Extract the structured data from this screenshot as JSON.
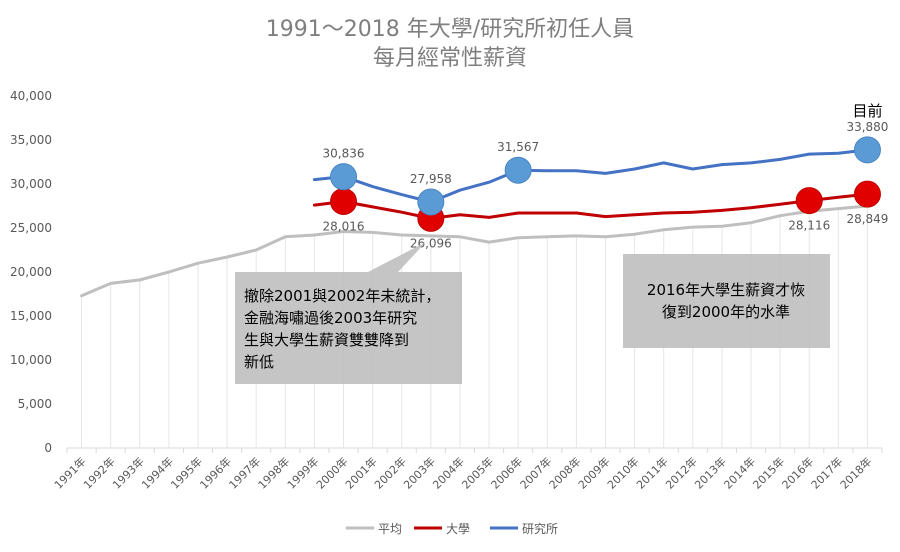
{
  "chart_data": {
    "type": "line",
    "title_lines": [
      "1991～2018 年大學/研究所初任人員",
      "每月經常性薪資"
    ],
    "categories": [
      "1991年",
      "1992年",
      "1993年",
      "1994年",
      "1995年",
      "1996年",
      "1997年",
      "1998年",
      "1999年",
      "2000年",
      "2001年",
      "2002年",
      "2003年",
      "2004年",
      "2005年",
      "2006年",
      "2007年",
      "2008年",
      "2009年",
      "2010年",
      "2011年",
      "2012年",
      "2013年",
      "2014年",
      "2015年",
      "2016年",
      "2017年",
      "2018年"
    ],
    "ylim": [
      0,
      40000
    ],
    "yticks": [
      "0",
      "5,000",
      "10,000",
      "15,000",
      "20,000",
      "25,000",
      "30,000",
      "35,000",
      "40,000"
    ],
    "grid": false,
    "legend_position": "bottom",
    "series": [
      {
        "name": "平均",
        "color": "#bfbfbf",
        "values": [
          17300,
          18700,
          19100,
          20000,
          21000,
          21700,
          22500,
          24000,
          24200,
          24600,
          24500,
          24200,
          24100,
          24000,
          23400,
          23900,
          24000,
          24100,
          24000,
          24300,
          24800,
          25100,
          25200,
          25600,
          26400,
          26900,
          27200,
          27500
        ]
      },
      {
        "name": "大學",
        "color": "#c00000",
        "values": [
          null,
          null,
          null,
          null,
          null,
          null,
          null,
          null,
          27600,
          28016,
          27400,
          26800,
          26096,
          26500,
          26200,
          26700,
          26700,
          26700,
          26300,
          26500,
          26700,
          26800,
          27000,
          27300,
          27700,
          28116,
          28500,
          28849
        ]
      },
      {
        "name": "研究所",
        "color": "#4472c4",
        "values": [
          null,
          null,
          null,
          null,
          null,
          null,
          null,
          null,
          30500,
          30836,
          29700,
          28800,
          27958,
          29300,
          30200,
          31567,
          31500,
          31500,
          31200,
          31700,
          32400,
          31700,
          32200,
          32400,
          32800,
          33400,
          33500,
          33880
        ]
      }
    ],
    "highlighted_points": [
      {
        "series": 1,
        "index": 9,
        "label": "28,016",
        "pos": "below"
      },
      {
        "series": 1,
        "index": 12,
        "label": "26,096",
        "pos": "below"
      },
      {
        "series": 1,
        "index": 25,
        "label": "28,116",
        "pos": "below"
      },
      {
        "series": 1,
        "index": 27,
        "label": "28,849",
        "pos": "below"
      },
      {
        "series": 2,
        "index": 9,
        "label": "30,836",
        "pos": "above"
      },
      {
        "series": 2,
        "index": 12,
        "label": "27,958",
        "pos": "above"
      },
      {
        "series": 2,
        "index": 15,
        "label": "31,567",
        "pos": "above"
      },
      {
        "series": 2,
        "index": 27,
        "label": "33,880",
        "pos": "above"
      }
    ],
    "current_label": "目前",
    "annotations": [
      {
        "lines": [
          "撤除2001與2002年未統計，",
          "金融海嘯過後2003年研究",
          "生與大學生薪資雙雙降到",
          "新低"
        ]
      },
      {
        "lines": [
          "2016年大學生薪資才恢",
          "復到2000年的水準"
        ]
      }
    ]
  }
}
